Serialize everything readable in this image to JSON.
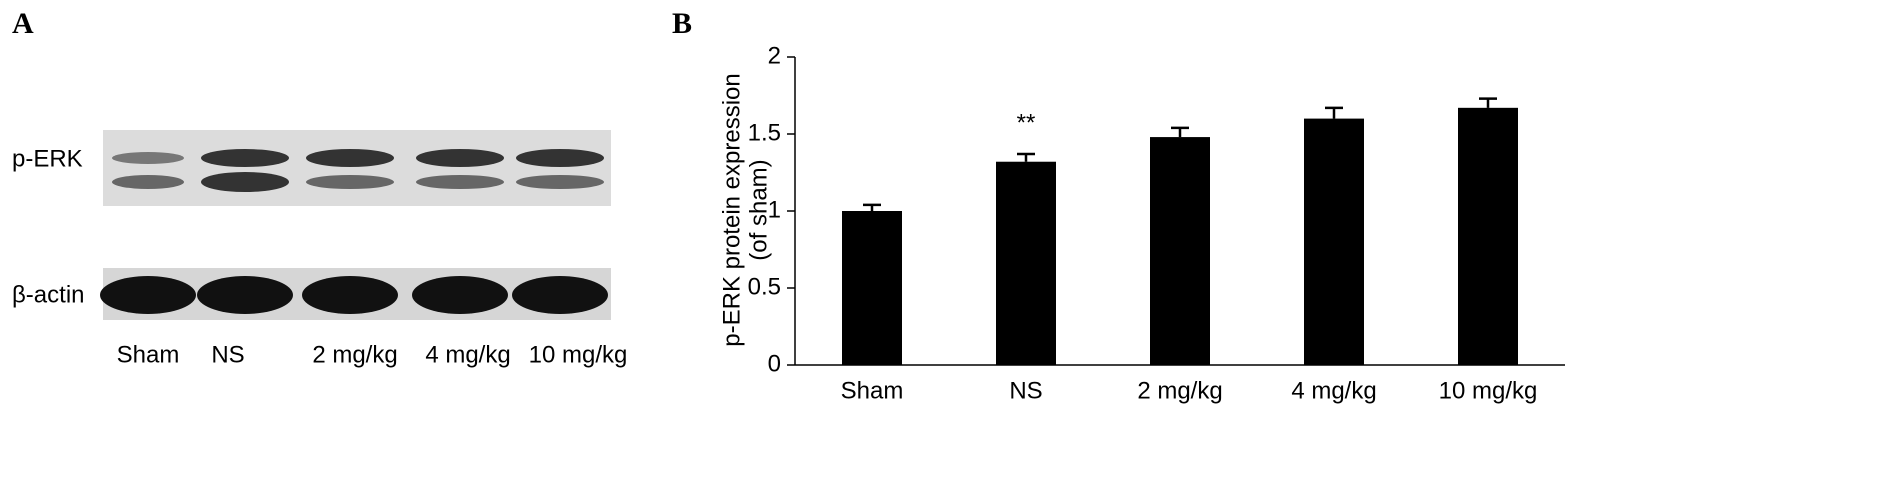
{
  "blot": {
    "panel_label": "A",
    "rows": [
      "p-ERK",
      "β-actin"
    ],
    "lanes": [
      "Sham",
      "NS",
      "2 mg/kg",
      "4 mg/kg",
      "10 mg/kg"
    ]
  },
  "chart_data": {
    "type": "bar",
    "panel_label": "B",
    "ylabel": [
      "p-ERK protein expression",
      "(of sham)"
    ],
    "categories": [
      "Sham",
      "NS",
      "2 mg/kg",
      "4 mg/kg",
      "10 mg/kg"
    ],
    "values": [
      1.0,
      1.32,
      1.48,
      1.6,
      1.67
    ],
    "errors": [
      0.04,
      0.05,
      0.06,
      0.07,
      0.06
    ],
    "color": "#000000",
    "annotations": [
      {
        "text": "**",
        "x": "NS"
      }
    ],
    "ylim": [
      0,
      2
    ],
    "yticks": [
      0,
      0.5,
      1,
      1.5,
      2
    ]
  }
}
